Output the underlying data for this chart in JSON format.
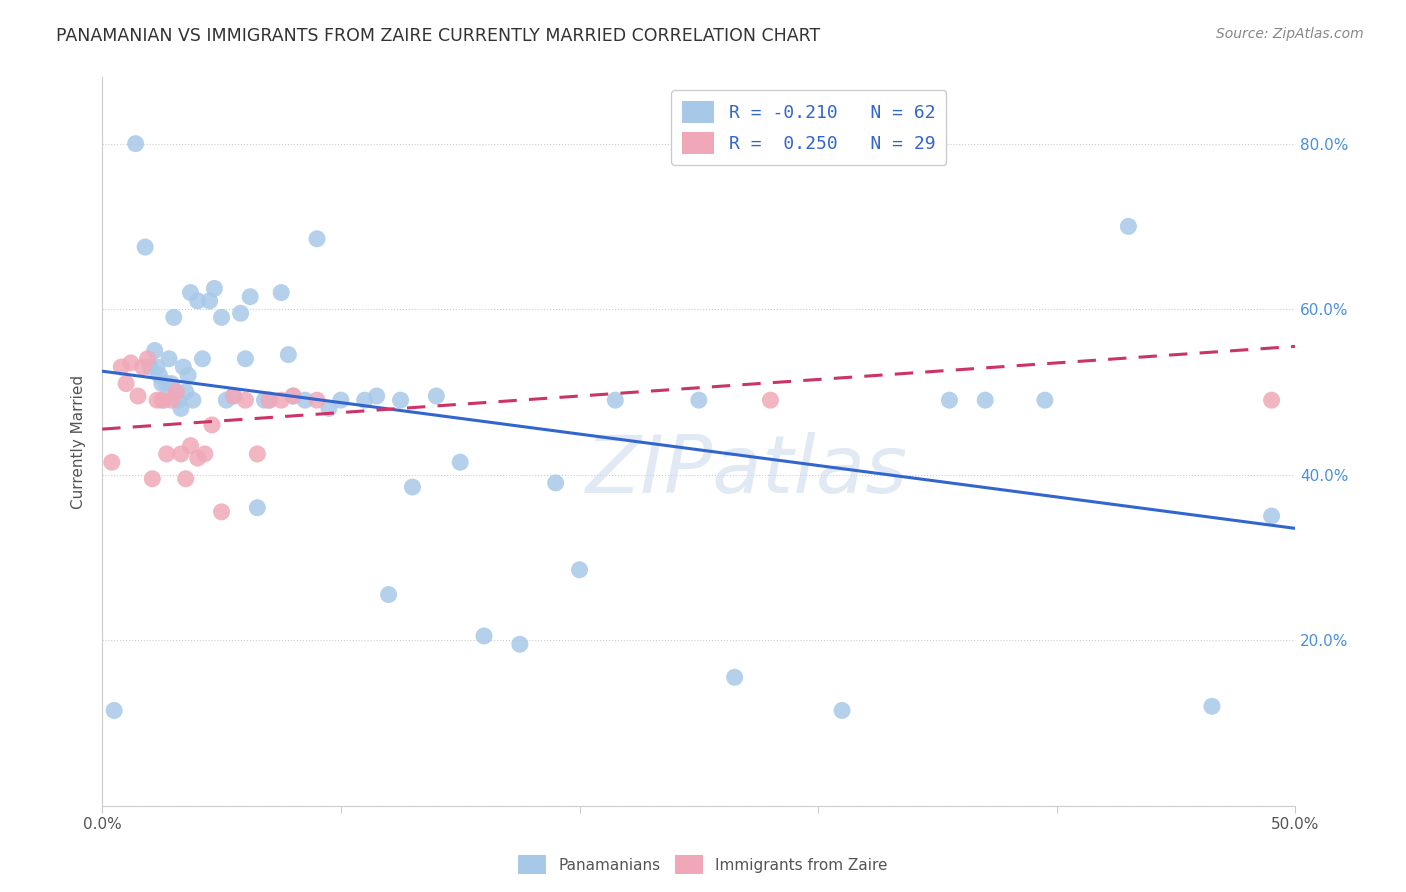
{
  "title": "PANAMANIAN VS IMMIGRANTS FROM ZAIRE CURRENTLY MARRIED CORRELATION CHART",
  "source": "Source: ZipAtlas.com",
  "ylabel": "Currently Married",
  "xlim": [
    0.0,
    0.5
  ],
  "ylim": [
    0.0,
    0.88
  ],
  "legend_labels": [
    "Panamanians",
    "Immigrants from Zaire"
  ],
  "blue_R": -0.21,
  "blue_N": 62,
  "pink_R": 0.25,
  "pink_N": 29,
  "blue_color": "#a8c8e8",
  "pink_color": "#f0a8b8",
  "blue_line_color": "#3366cc",
  "pink_line_color": "#cc3366",
  "watermark": "ZIPatlas",
  "blue_line_x": [
    0.0,
    0.5
  ],
  "blue_line_y": [
    0.525,
    0.335
  ],
  "pink_line_x": [
    0.0,
    0.5
  ],
  "pink_line_y": [
    0.455,
    0.555
  ],
  "blue_x": [
    0.005,
    0.014,
    0.018,
    0.02,
    0.022,
    0.023,
    0.024,
    0.025,
    0.026,
    0.027,
    0.028,
    0.029,
    0.03,
    0.031,
    0.032,
    0.033,
    0.034,
    0.035,
    0.036,
    0.037,
    0.038,
    0.04,
    0.042,
    0.045,
    0.047,
    0.05,
    0.052,
    0.055,
    0.058,
    0.06,
    0.062,
    0.065,
    0.068,
    0.07,
    0.075,
    0.078,
    0.08,
    0.085,
    0.09,
    0.095,
    0.1,
    0.11,
    0.115,
    0.12,
    0.125,
    0.13,
    0.14,
    0.15,
    0.16,
    0.175,
    0.19,
    0.2,
    0.215,
    0.25,
    0.265,
    0.31,
    0.355,
    0.37,
    0.395,
    0.43,
    0.465,
    0.49
  ],
  "blue_y": [
    0.115,
    0.8,
    0.675,
    0.53,
    0.55,
    0.53,
    0.52,
    0.51,
    0.49,
    0.51,
    0.54,
    0.51,
    0.59,
    0.5,
    0.49,
    0.48,
    0.53,
    0.5,
    0.52,
    0.62,
    0.49,
    0.61,
    0.54,
    0.61,
    0.625,
    0.59,
    0.49,
    0.495,
    0.595,
    0.54,
    0.615,
    0.36,
    0.49,
    0.49,
    0.62,
    0.545,
    0.495,
    0.49,
    0.685,
    0.48,
    0.49,
    0.49,
    0.495,
    0.255,
    0.49,
    0.385,
    0.495,
    0.415,
    0.205,
    0.195,
    0.39,
    0.285,
    0.49,
    0.49,
    0.155,
    0.115,
    0.49,
    0.49,
    0.49,
    0.7,
    0.12,
    0.35
  ],
  "pink_x": [
    0.004,
    0.008,
    0.01,
    0.012,
    0.015,
    0.017,
    0.019,
    0.021,
    0.023,
    0.025,
    0.027,
    0.029,
    0.031,
    0.033,
    0.035,
    0.037,
    0.04,
    0.043,
    0.046,
    0.05,
    0.055,
    0.06,
    0.065,
    0.07,
    0.075,
    0.08,
    0.09,
    0.28,
    0.49
  ],
  "pink_y": [
    0.415,
    0.53,
    0.51,
    0.535,
    0.495,
    0.53,
    0.54,
    0.395,
    0.49,
    0.49,
    0.425,
    0.49,
    0.5,
    0.425,
    0.395,
    0.435,
    0.42,
    0.425,
    0.46,
    0.355,
    0.495,
    0.49,
    0.425,
    0.49,
    0.49,
    0.495,
    0.49,
    0.49,
    0.49
  ]
}
